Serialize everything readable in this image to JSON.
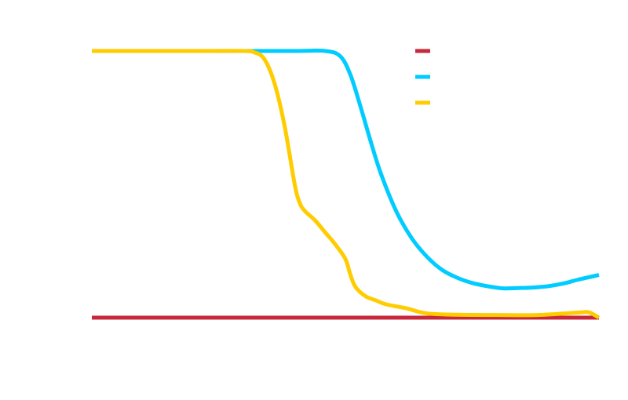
{
  "chart_data": {
    "type": "line",
    "title": "",
    "xlabel": "",
    "ylabel": "",
    "xlim": [
      0,
      100
    ],
    "ylim": [
      0,
      100
    ],
    "grid": false,
    "legend": {
      "placement": "top-right",
      "show_labels": false
    },
    "series": [
      {
        "color": "#c8283c",
        "x": [
          0,
          100
        ],
        "y": [
          0,
          0
        ]
      },
      {
        "color": "#00ccff",
        "x": [
          0,
          10,
          20,
          30,
          40,
          46,
          49,
          51,
          53,
          55,
          57,
          60,
          63,
          66,
          69,
          72,
          75,
          78,
          81,
          84,
          87,
          90,
          93,
          96,
          100
        ],
        "y": [
          100,
          100,
          100,
          100,
          100,
          100,
          98,
          91,
          79,
          66,
          54,
          40,
          30,
          23,
          18,
          15,
          13,
          11.8,
          11,
          11.1,
          11.3,
          11.8,
          12.8,
          14.3,
          16
        ]
      },
      {
        "color": "#ffcc00",
        "x": [
          0,
          10,
          20,
          30,
          32,
          34,
          36,
          38,
          40,
          41,
          42,
          44,
          46,
          48,
          50,
          51,
          52,
          54,
          56,
          58,
          62,
          66,
          72,
          80,
          88,
          96,
          98,
          100
        ],
        "y": [
          100,
          100,
          100,
          100,
          99.5,
          97,
          88,
          72,
          50,
          43,
          40,
          36.5,
          32,
          27.5,
          22,
          16,
          11.5,
          8,
          6.5,
          5,
          3.5,
          1.6,
          1.1,
          1,
          1,
          1.9,
          2,
          0
        ]
      }
    ]
  }
}
